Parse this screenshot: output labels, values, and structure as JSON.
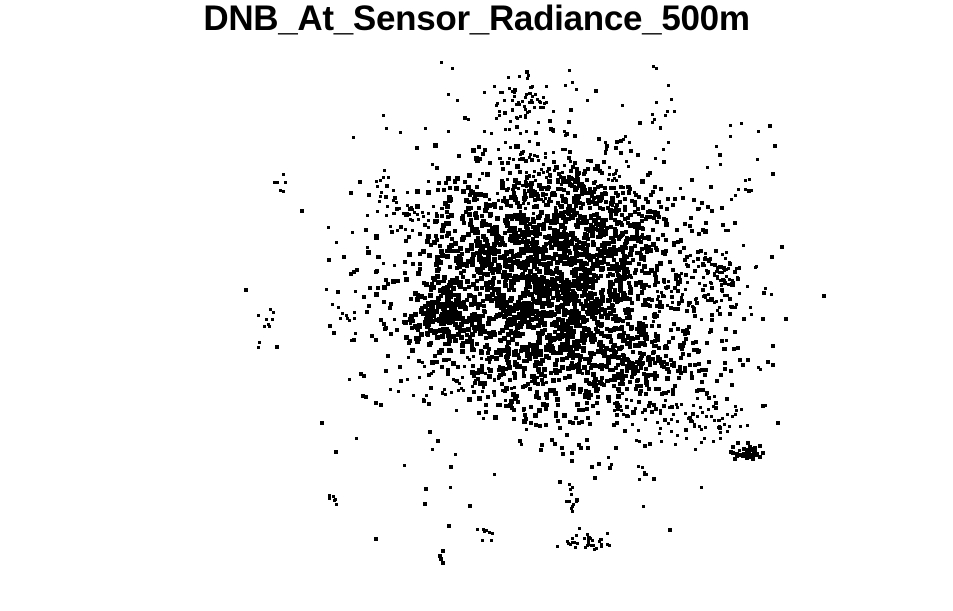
{
  "plot": {
    "title": "DNB_At_Sensor_Radiance_500m",
    "pixel_color": "#000000",
    "background_color": "#ffffff"
  }
}
